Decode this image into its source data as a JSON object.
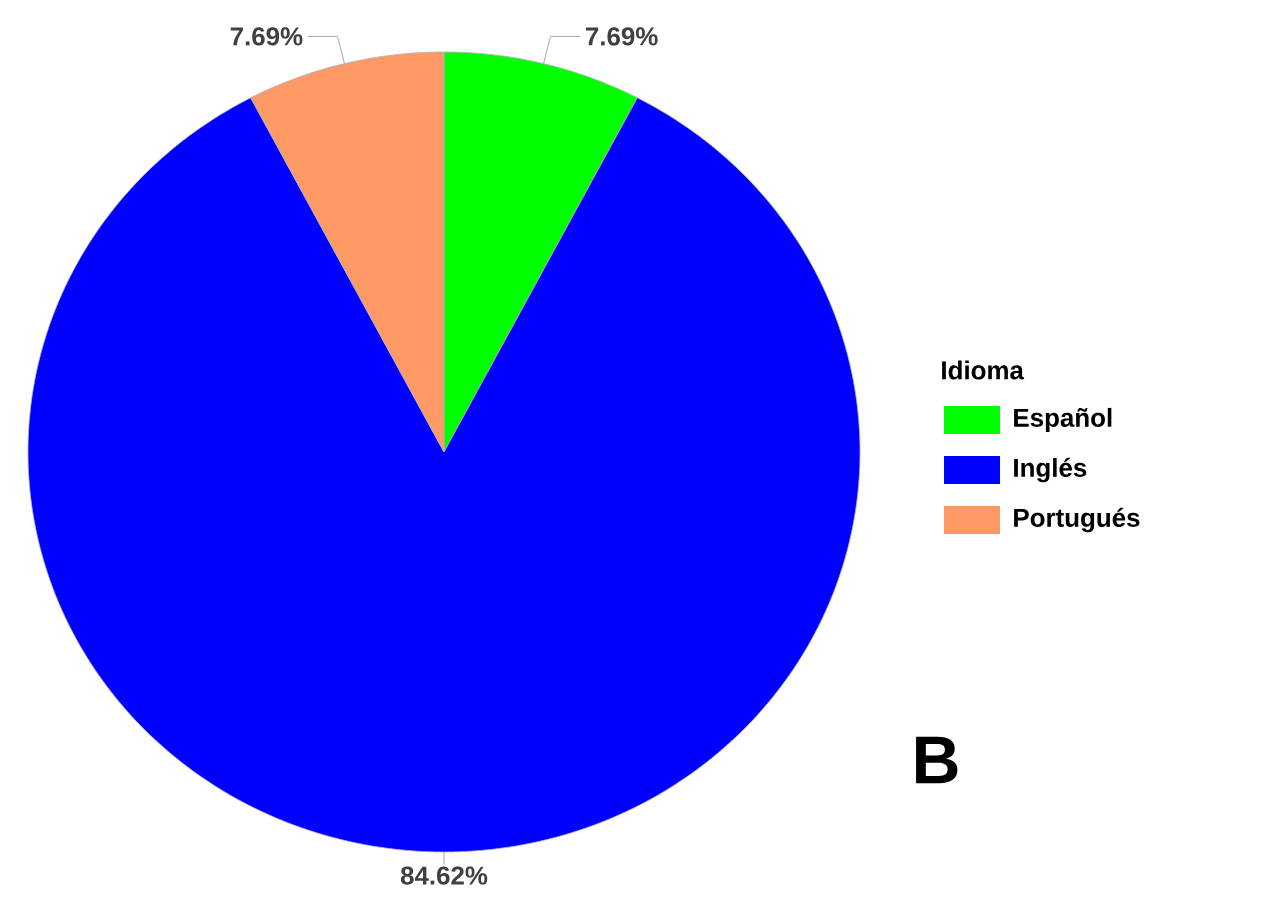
{
  "chart_data": {
    "type": "pie",
    "categories": [
      "Español",
      "Inglés",
      "Portugués"
    ],
    "values": [
      7.69,
      84.62,
      7.69
    ],
    "colors": [
      "#00ff00",
      "#0000ff",
      "#ff9966"
    ],
    "value_labels": [
      "7.69%",
      "84.62%",
      "7.69%"
    ],
    "legend_title": "Idioma",
    "legend": "right",
    "annotations": [
      "B"
    ]
  }
}
